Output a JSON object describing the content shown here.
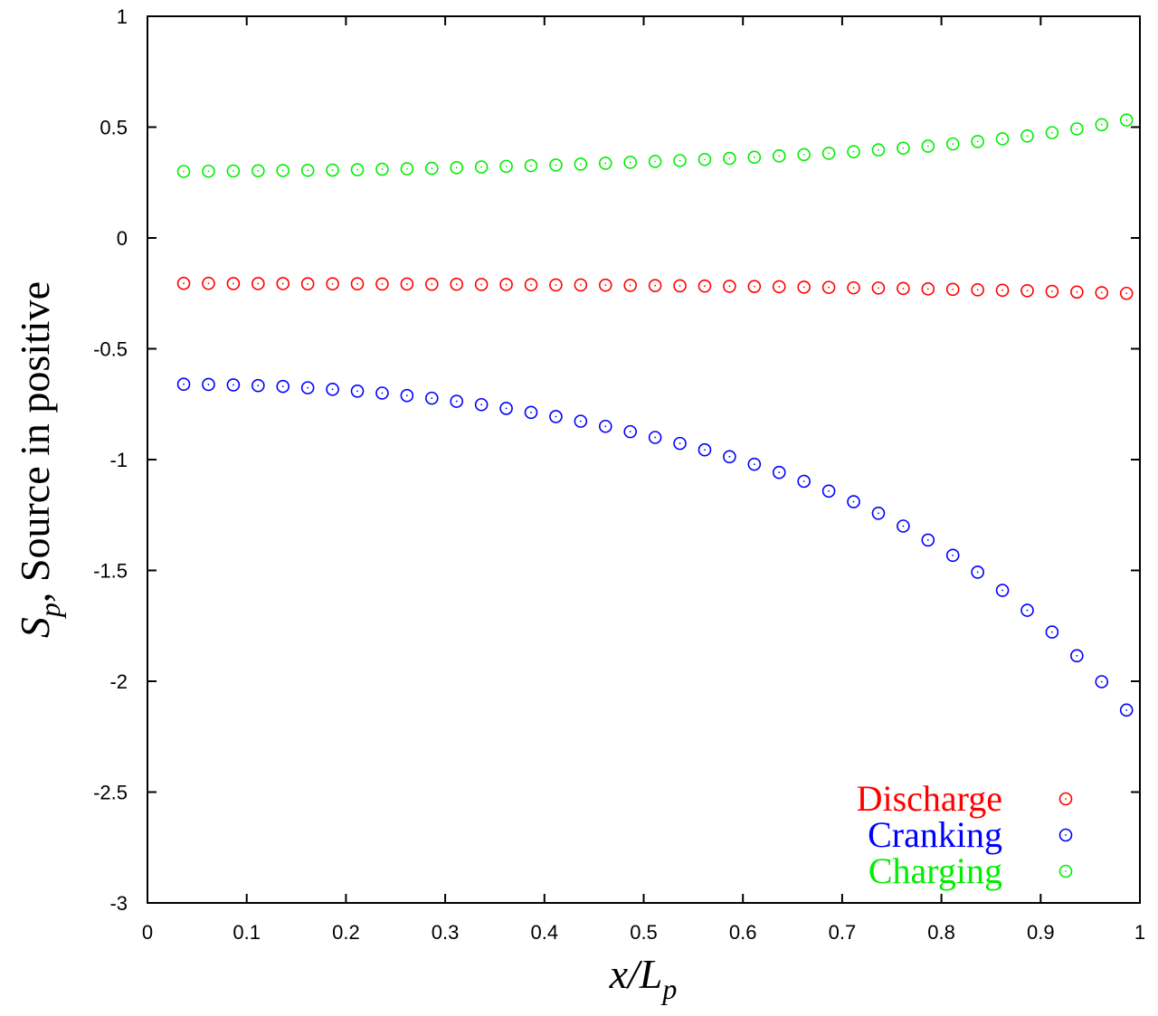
{
  "chart_data": {
    "type": "scatter",
    "title": "",
    "xlabel": {
      "main": "x/L",
      "sub": "p"
    },
    "ylabel": {
      "main": "S",
      "sub": "p",
      "rest": ", Source in positive"
    },
    "xlim": [
      0,
      1
    ],
    "ylim": [
      -3,
      1
    ],
    "xticks": [
      "0",
      "0.1",
      "0.2",
      "0.3",
      "0.4",
      "0.5",
      "0.6",
      "0.7",
      "0.8",
      "0.9",
      "1"
    ],
    "yticks": [
      "1",
      "0.5",
      "0",
      "-0.5",
      "-1",
      "-1.5",
      "-2",
      "-2.5",
      "-3"
    ],
    "grid": false,
    "legend_position": "bottom-right",
    "x": [
      0.0365,
      0.0615,
      0.0865,
      0.1115,
      0.1365,
      0.1615,
      0.1865,
      0.2115,
      0.2365,
      0.2615,
      0.2865,
      0.3115,
      0.3365,
      0.3615,
      0.3865,
      0.4115,
      0.4365,
      0.4615,
      0.4865,
      0.5115,
      0.5365,
      0.5615,
      0.5865,
      0.6115,
      0.6365,
      0.6615,
      0.6865,
      0.7115,
      0.7365,
      0.7615,
      0.7865,
      0.8115,
      0.8365,
      0.8615,
      0.8865,
      0.9115,
      0.9365,
      0.9615,
      0.9865
    ],
    "series": [
      {
        "name": "Discharge",
        "color": "#ff0000",
        "values": [
          -0.205,
          -0.205,
          -0.206,
          -0.206,
          -0.206,
          -0.207,
          -0.207,
          -0.207,
          -0.208,
          -0.208,
          -0.209,
          -0.209,
          -0.21,
          -0.21,
          -0.211,
          -0.212,
          -0.212,
          -0.213,
          -0.214,
          -0.215,
          -0.216,
          -0.217,
          -0.218,
          -0.219,
          -0.22,
          -0.222,
          -0.223,
          -0.225,
          -0.226,
          -0.228,
          -0.23,
          -0.232,
          -0.234,
          -0.236,
          -0.238,
          -0.241,
          -0.244,
          -0.247,
          -0.25
        ]
      },
      {
        "name": "Cranking",
        "color": "#0000ff",
        "values": [
          -0.66,
          -0.661,
          -0.663,
          -0.666,
          -0.67,
          -0.676,
          -0.683,
          -0.691,
          -0.7,
          -0.711,
          -0.723,
          -0.737,
          -0.752,
          -0.769,
          -0.787,
          -0.806,
          -0.827,
          -0.85,
          -0.874,
          -0.9,
          -0.927,
          -0.956,
          -0.987,
          -1.021,
          -1.058,
          -1.098,
          -1.142,
          -1.19,
          -1.242,
          -1.3,
          -1.363,
          -1.432,
          -1.508,
          -1.59,
          -1.68,
          -1.778,
          -1.885,
          -2.002,
          -2.13
        ]
      },
      {
        "name": "Charging",
        "color": "#00ee00",
        "values": [
          0.3,
          0.301,
          0.302,
          0.303,
          0.304,
          0.305,
          0.306,
          0.308,
          0.31,
          0.312,
          0.314,
          0.317,
          0.32,
          0.323,
          0.326,
          0.329,
          0.333,
          0.337,
          0.341,
          0.345,
          0.349,
          0.354,
          0.359,
          0.364,
          0.37,
          0.376,
          0.382,
          0.389,
          0.397,
          0.405,
          0.414,
          0.424,
          0.435,
          0.447,
          0.46,
          0.475,
          0.492,
          0.511,
          0.532
        ]
      }
    ]
  }
}
